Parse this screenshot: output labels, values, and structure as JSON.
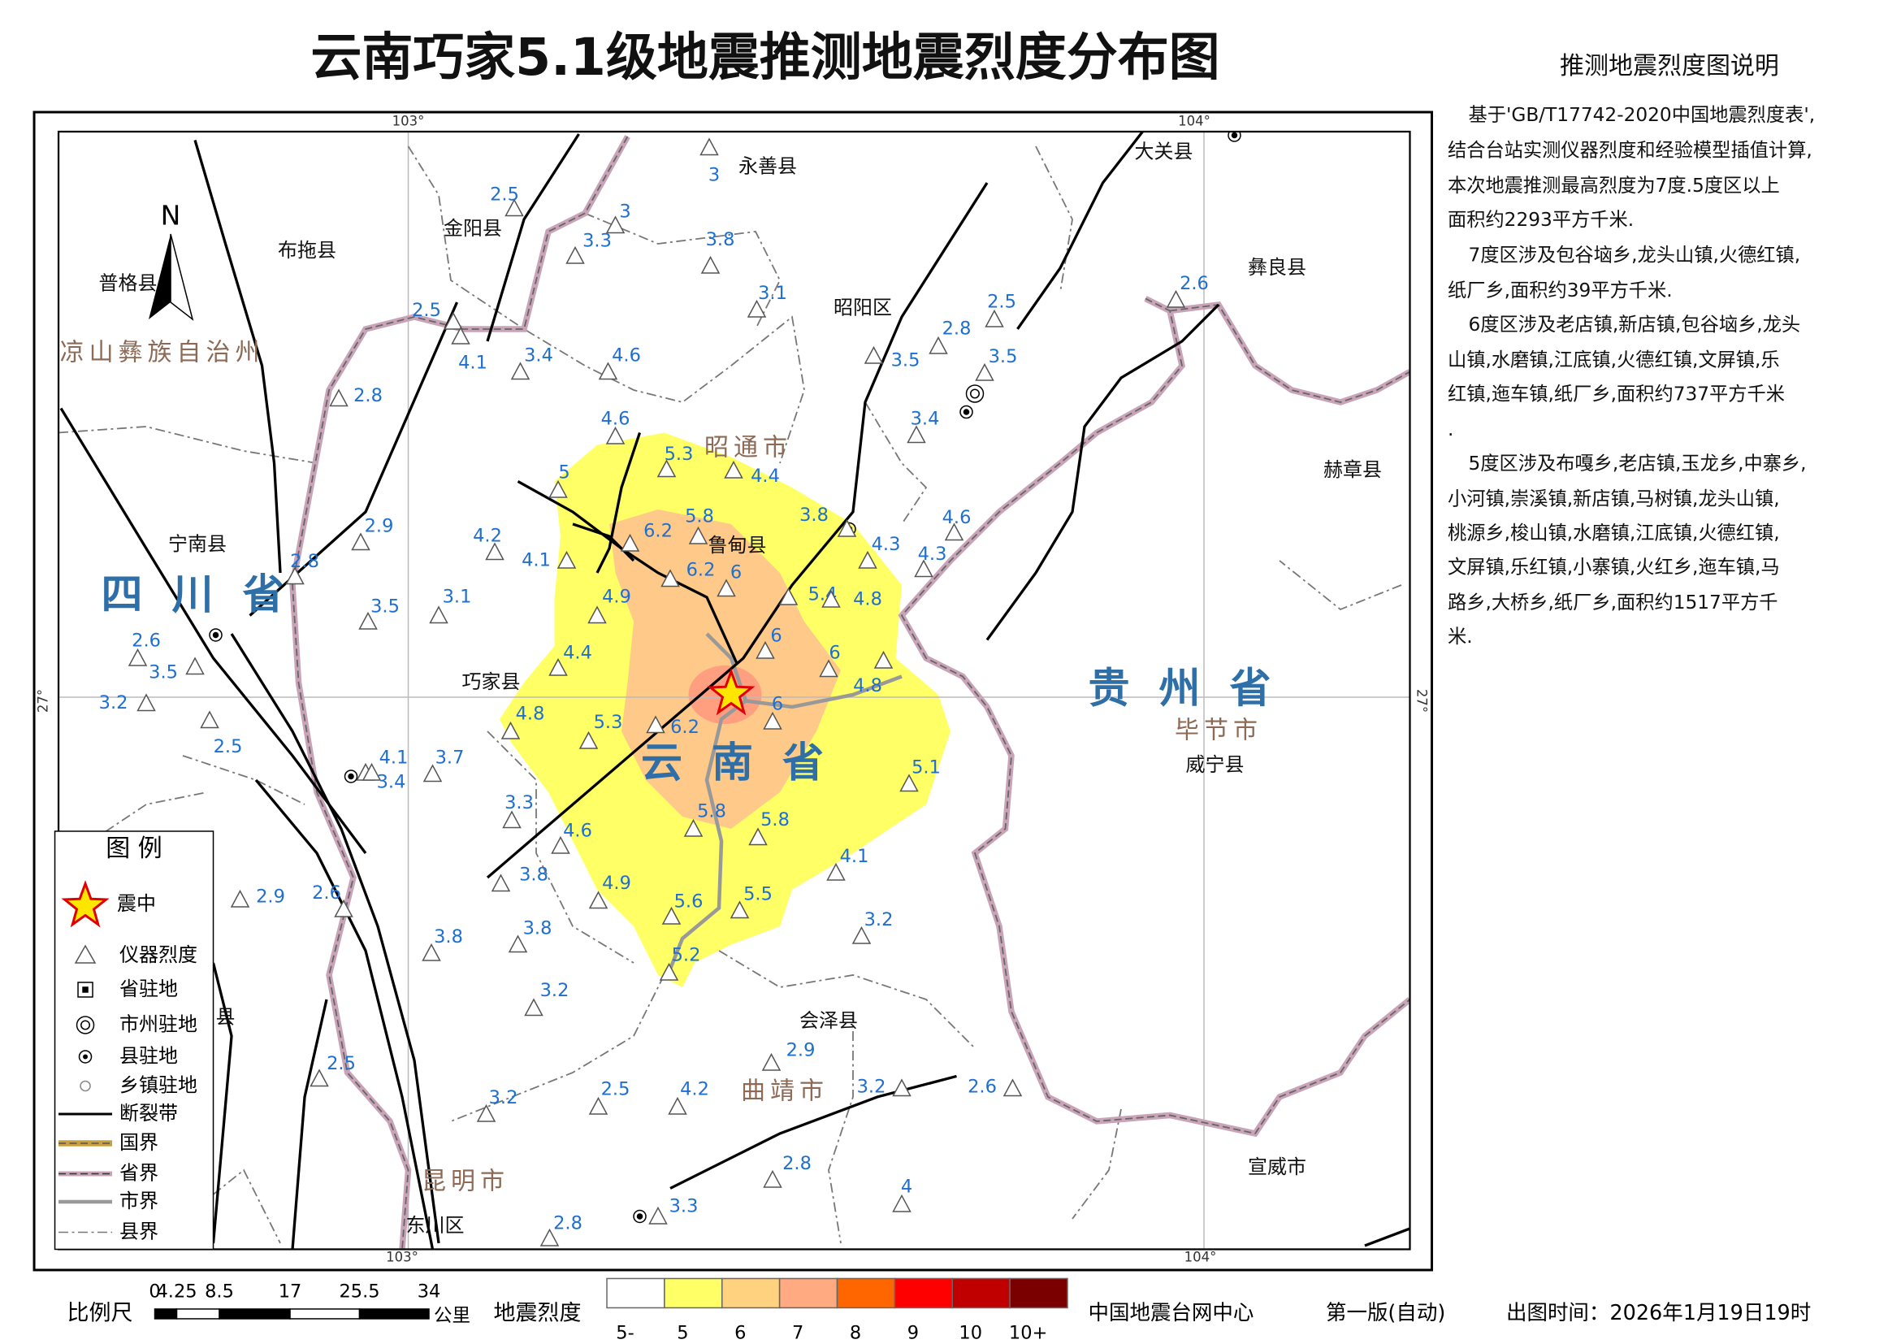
{
  "title": "云南巧家5.1级地震推测地震烈度分布图",
  "description": {
    "title": "推测地震烈度图说明",
    "lines": [
      "基于'GB/T17742-2020中国地震烈度表',",
      "结合台站实测仪器烈度和经验模型插值计算,",
      "本次地震推测最高烈度为7度.5度区以上",
      "面积约2293平方千米.",
      "7度区涉及包谷垴乡,龙头山镇,火德红镇,",
      "纸厂乡,面积约39平方千米.",
      "6度区涉及老店镇,新店镇,包谷垴乡,龙头",
      "山镇,水磨镇,江底镇,火德红镇,文屏镇,乐",
      "红镇,迤车镇,纸厂乡,面积约737平方千米",
      ".",
      "5度区涉及布嘎乡,老店镇,玉龙乡,中寨乡,",
      "小河镇,崇溪镇,新店镇,马树镇,龙头山镇,",
      "桃源乡,梭山镇,水磨镇,江底镇,火德红镇,",
      "文屏镇,乐红镇,小寨镇,火红乡,迤车镇,马",
      "路乡,大桥乡,纸厂乡,面积约1517平方千",
      "米."
    ]
  },
  "map": {
    "axis_labels": [
      "103°",
      "104°",
      "103°",
      "104°",
      "27°",
      "27°"
    ],
    "places": [
      "永善县",
      "大关县",
      "金阳县",
      "布拖县",
      "普格县",
      "昭阳区",
      "彝良县",
      "鲁甸县",
      "宁南县",
      "巧家县",
      "赫章县",
      "威宁县",
      "会泽县",
      "宣威市",
      "东川区",
      "县"
    ],
    "cities": [
      "凉山彝族自治州",
      "昭通市",
      "毕节市",
      "曲靖市",
      "昆明市"
    ],
    "provinces": [
      "四川省",
      "贵州省",
      "云南省"
    ],
    "stations": [
      3,
      2.5,
      3,
      3.3,
      3.8,
      3.1,
      2.5,
      2.5,
      2.6,
      2.8,
      3.5,
      3.5,
      4.1,
      3.4,
      4.6,
      2.8,
      4.6,
      3.4,
      5.3,
      4.4,
      5,
      3.8,
      5.8,
      6.2,
      4.6,
      4.2,
      4.3,
      4.3,
      4.1,
      6.2,
      6,
      5.4,
      4.8,
      4.9,
      2.9,
      2.8,
      3.5,
      3.1,
      2.6,
      6,
      6,
      4.4,
      3.5,
      3.2,
      4.8,
      6,
      4.8,
      5.3,
      6.2,
      2.5,
      4.1,
      3.7,
      3.4,
      5.1,
      3.3,
      5.8,
      5.8,
      4.6,
      4.1,
      3.8,
      4.9,
      2.9,
      2.6,
      5.6,
      5.5,
      3.2,
      3.8,
      3.8,
      5.2,
      3.2,
      2.9,
      2.5,
      3.2,
      2.5,
      4.2,
      3.2,
      2.6,
      2.8,
      4,
      3.3,
      2.8
    ]
  },
  "legend": {
    "title": "图 例",
    "items": [
      "震中",
      "仪器烈度",
      "省驻地",
      "市州驻地",
      "县驻地",
      "乡镇驻地",
      "断裂带",
      "国界",
      "省界",
      "市界",
      "县界"
    ]
  },
  "scale": {
    "label": "比例尺",
    "ticks": [
      "0",
      "4.25",
      "8.5",
      "17",
      "25.5",
      "34"
    ],
    "unit": "公里"
  },
  "intensity_scale": {
    "label": "地震烈度",
    "classes": [
      "5-",
      "5",
      "6",
      "7",
      "8",
      "9",
      "10",
      "10+"
    ],
    "colors": [
      "#ffffff",
      "#ffff66",
      "#ffd27f",
      "#ffaa80",
      "#ff6600",
      "#ff0000",
      "#c00000",
      "#7a0000"
    ]
  },
  "footer": {
    "org": "中国地震台网中心",
    "edition": "第一版(自动)",
    "time": "出图时间：2026年1月19日19时"
  }
}
